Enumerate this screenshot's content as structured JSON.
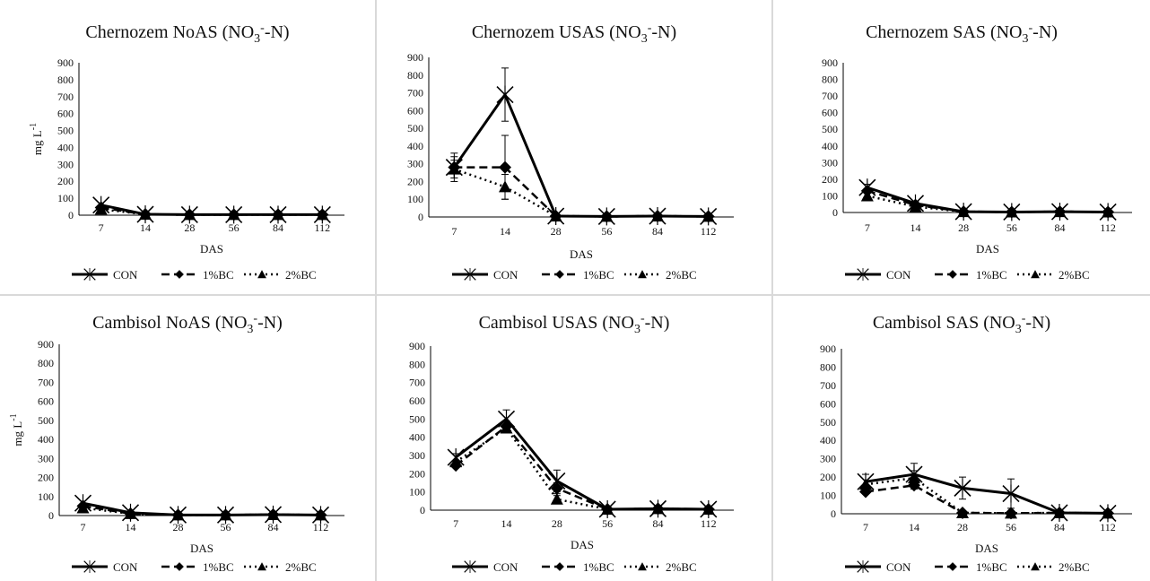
{
  "shared": {
    "xlabel": "DAS",
    "ylabel": "mg L",
    "ylabel_sup": "-1",
    "categories": [
      "7",
      "14",
      "28",
      "56",
      "84",
      "112"
    ],
    "yticks": [
      "0",
      "100",
      "200",
      "300",
      "400",
      "500",
      "600",
      "700",
      "800",
      "900"
    ],
    "legend": [
      "CON",
      "1%BC",
      "2%BC"
    ],
    "title_suffix": "(NO",
    "title_sub": "3",
    "title_sup": "-",
    "title_end": "-N)"
  },
  "chart_data": [
    {
      "type": "line",
      "title": "Chernozem NoAS (NO3--N)",
      "title_prefix": "Chernozem NoAS",
      "xlabel": "DAS",
      "ylabel": "mg L-1",
      "ylim": [
        0,
        900
      ],
      "categories": [
        "7",
        "14",
        "28",
        "56",
        "84",
        "112"
      ],
      "series": [
        {
          "name": "CON",
          "values": [
            60,
            5,
            3,
            3,
            3,
            3
          ],
          "errors": [
            0,
            0,
            0,
            0,
            0,
            0
          ]
        },
        {
          "name": "1%BC",
          "values": [
            45,
            5,
            3,
            3,
            3,
            3
          ],
          "errors": [
            0,
            0,
            0,
            0,
            0,
            0
          ]
        },
        {
          "name": "2%BC",
          "values": [
            35,
            5,
            3,
            3,
            3,
            3
          ],
          "errors": [
            0,
            0,
            0,
            0,
            0,
            0
          ]
        }
      ],
      "show_ylabel": true
    },
    {
      "type": "line",
      "title": "Chernozem USAS (NO3--N)",
      "title_prefix": "Chernozem USAS",
      "xlabel": "DAS",
      "ylabel": "",
      "ylim": [
        0,
        900
      ],
      "categories": [
        "7",
        "14",
        "28",
        "56",
        "84",
        "112"
      ],
      "series": [
        {
          "name": "CON",
          "values": [
            280,
            690,
            5,
            3,
            5,
            3
          ],
          "errors": [
            80,
            150,
            0,
            0,
            0,
            0
          ]
        },
        {
          "name": "1%BC",
          "values": [
            280,
            280,
            5,
            3,
            5,
            3
          ],
          "errors": [
            60,
            180,
            0,
            0,
            0,
            0
          ]
        },
        {
          "name": "2%BC",
          "values": [
            270,
            170,
            5,
            3,
            5,
            3
          ],
          "errors": [
            50,
            70,
            0,
            0,
            0,
            0
          ]
        }
      ],
      "show_ylabel": false
    },
    {
      "type": "line",
      "title": "Chernozem SAS (NO3--N)",
      "title_prefix": "Chernozem SAS",
      "xlabel": "DAS",
      "ylabel": "",
      "ylim": [
        0,
        900
      ],
      "categories": [
        "7",
        "14",
        "28",
        "56",
        "84",
        "112"
      ],
      "series": [
        {
          "name": "CON",
          "values": [
            150,
            55,
            5,
            3,
            5,
            3
          ],
          "errors": [
            20,
            10,
            0,
            0,
            0,
            0
          ]
        },
        {
          "name": "1%BC",
          "values": [
            130,
            45,
            5,
            3,
            5,
            3
          ],
          "errors": [
            0,
            0,
            0,
            0,
            0,
            0
          ]
        },
        {
          "name": "2%BC",
          "values": [
            100,
            35,
            5,
            3,
            5,
            3
          ],
          "errors": [
            0,
            0,
            0,
            0,
            0,
            0
          ]
        }
      ],
      "show_ylabel": false
    },
    {
      "type": "line",
      "title": "Cambisol NoAS (NO3--N)",
      "title_prefix": "Cambisol NoAS",
      "xlabel": "DAS",
      "ylabel": "mg L-1",
      "ylim": [
        0,
        900
      ],
      "categories": [
        "7",
        "14",
        "28",
        "56",
        "84",
        "112"
      ],
      "series": [
        {
          "name": "CON",
          "values": [
            65,
            15,
            3,
            3,
            5,
            3
          ],
          "errors": [
            0,
            0,
            0,
            0,
            0,
            0
          ]
        },
        {
          "name": "1%BC",
          "values": [
            50,
            10,
            3,
            3,
            5,
            3
          ],
          "errors": [
            0,
            0,
            0,
            0,
            0,
            0
          ]
        },
        {
          "name": "2%BC",
          "values": [
            40,
            10,
            3,
            3,
            5,
            3
          ],
          "errors": [
            0,
            0,
            0,
            0,
            0,
            0
          ]
        }
      ],
      "show_ylabel": true
    },
    {
      "type": "line",
      "title": "Cambisol USAS (NO3--N)",
      "title_prefix": "Cambisol USAS",
      "xlabel": "DAS",
      "ylabel": "",
      "ylim": [
        0,
        900
      ],
      "categories": [
        "7",
        "14",
        "28",
        "56",
        "84",
        "112"
      ],
      "series": [
        {
          "name": "CON",
          "values": [
            290,
            500,
            160,
            5,
            8,
            5
          ],
          "errors": [
            20,
            50,
            60,
            0,
            0,
            0
          ]
        },
        {
          "name": "1%BC",
          "values": [
            245,
            460,
            120,
            5,
            8,
            5
          ],
          "errors": [
            0,
            30,
            30,
            0,
            0,
            0
          ]
        },
        {
          "name": "2%BC",
          "values": [
            265,
            450,
            60,
            5,
            8,
            5
          ],
          "errors": [
            0,
            20,
            20,
            0,
            0,
            0
          ]
        }
      ],
      "show_ylabel": false
    },
    {
      "type": "line",
      "title": "Cambisol SAS (NO3--N)",
      "title_prefix": "Cambisol SAS",
      "xlabel": "DAS",
      "ylabel": "",
      "ylim": [
        0,
        900
      ],
      "categories": [
        "7",
        "14",
        "28",
        "56",
        "84",
        "112"
      ],
      "series": [
        {
          "name": "CON",
          "values": [
            175,
            215,
            140,
            110,
            5,
            3
          ],
          "errors": [
            40,
            60,
            60,
            80,
            0,
            0
          ]
        },
        {
          "name": "1%BC",
          "values": [
            120,
            155,
            5,
            3,
            5,
            3
          ],
          "errors": [
            0,
            20,
            0,
            0,
            0,
            0
          ]
        },
        {
          "name": "2%BC",
          "values": [
            160,
            195,
            5,
            3,
            5,
            3
          ],
          "errors": [
            0,
            40,
            0,
            0,
            0,
            0
          ]
        }
      ],
      "show_ylabel": false
    }
  ]
}
